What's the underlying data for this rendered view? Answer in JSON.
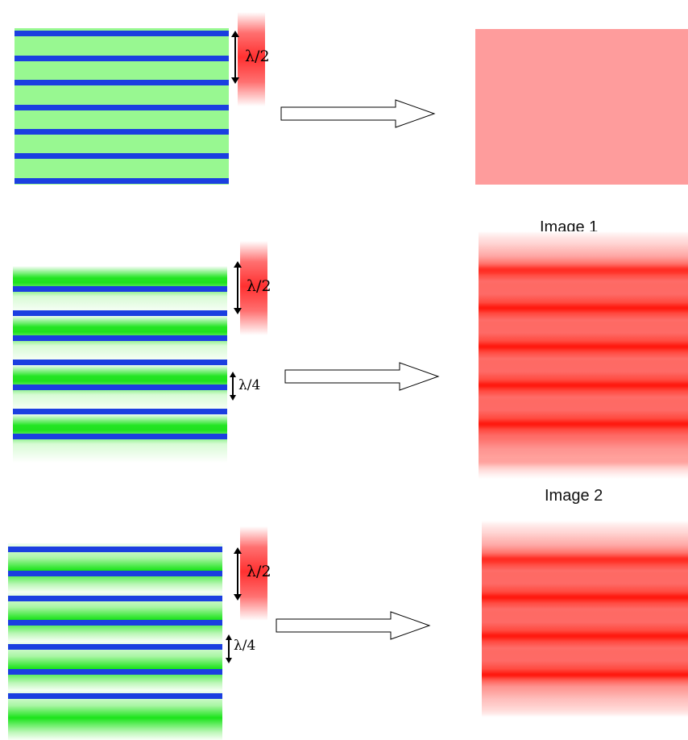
{
  "labels": {
    "half_wavelength": "λ/2",
    "quarter_wavelength": "λ/4"
  },
  "captions": {
    "image1": "Image 1",
    "image2": "Image 2"
  },
  "colors": {
    "layer_line": "#1b3fe0",
    "green_medium": "#98f891",
    "red_uniform": "#fe9c9c",
    "red_fringe": "#ff1a10"
  },
  "icons": {
    "process_arrow": "hollow-right-arrow",
    "dimension_arrow": "double-headed-vertical-arrow"
  }
}
